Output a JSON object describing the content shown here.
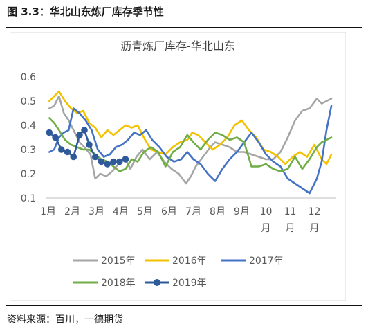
{
  "figure": {
    "title": "图 3.3：华北山东炼厂库存季节性",
    "source": "资料来源：百川，一德期货"
  },
  "chart_data": {
    "type": "line",
    "title": "沥青炼厂库存-华北山东",
    "xlabel": "",
    "ylabel": "",
    "ylim": [
      0.1,
      0.6
    ],
    "yticks": [
      "0.1",
      "0.2",
      "0.3",
      "0.4",
      "0.5",
      "0.6"
    ],
    "x_range": [
      1,
      13
    ],
    "xticks": [
      {
        "x": 1,
        "lines": [
          "1月"
        ]
      },
      {
        "x": 2,
        "lines": [
          "2月"
        ]
      },
      {
        "x": 3,
        "lines": [
          "3月"
        ]
      },
      {
        "x": 4,
        "lines": [
          "4月"
        ]
      },
      {
        "x": 5,
        "lines": [
          "5月"
        ]
      },
      {
        "x": 6,
        "lines": [
          "6月"
        ]
      },
      {
        "x": 7,
        "lines": [
          "7月"
        ]
      },
      {
        "x": 8,
        "lines": [
          "8月"
        ]
      },
      {
        "x": 9,
        "lines": [
          "9月"
        ]
      },
      {
        "x": 10,
        "lines": [
          "10",
          "月"
        ]
      },
      {
        "x": 11,
        "lines": [
          "11",
          "月"
        ]
      },
      {
        "x": 12,
        "lines": [
          "12",
          "月"
        ]
      }
    ],
    "grid": false,
    "legend_position": "bottom",
    "series": [
      {
        "name": "2015年",
        "color": "#a5a5a5",
        "marker": false,
        "x": [
          1.15,
          1.35,
          1.55,
          1.75,
          1.95,
          2.15,
          2.4,
          2.6,
          2.85,
          3.05,
          3.25,
          3.5,
          3.75,
          4.0,
          4.25,
          4.5,
          4.75,
          5.0,
          5.3,
          5.6,
          5.9,
          6.2,
          6.5,
          6.8,
          7.0,
          7.2,
          7.5,
          7.8,
          8.0,
          8.3,
          8.6,
          8.9,
          9.2,
          9.5,
          9.8,
          10.1,
          10.4,
          10.7,
          11.0,
          11.3,
          11.6,
          11.9,
          12.2,
          12.4,
          12.6,
          12.8
        ],
        "y": [
          0.47,
          0.48,
          0.52,
          0.45,
          0.42,
          0.38,
          0.33,
          0.31,
          0.28,
          0.18,
          0.2,
          0.19,
          0.21,
          0.24,
          0.27,
          0.22,
          0.27,
          0.3,
          0.26,
          0.29,
          0.25,
          0.22,
          0.2,
          0.16,
          0.19,
          0.23,
          0.27,
          0.31,
          0.33,
          0.32,
          0.31,
          0.29,
          0.29,
          0.28,
          0.27,
          0.26,
          0.26,
          0.29,
          0.35,
          0.42,
          0.46,
          0.47,
          0.51,
          0.49,
          0.5,
          0.51
        ]
      },
      {
        "name": "2016年",
        "color": "#f2c200",
        "marker": false,
        "x": [
          1.15,
          1.35,
          1.55,
          1.8,
          2.05,
          2.3,
          2.55,
          2.8,
          3.05,
          3.3,
          3.55,
          3.8,
          4.05,
          4.3,
          4.55,
          4.8,
          5.05,
          5.35,
          5.65,
          5.95,
          6.25,
          6.55,
          6.85,
          7.05,
          7.3,
          7.6,
          7.9,
          8.2,
          8.5,
          8.8,
          9.1,
          9.4,
          9.7,
          10.0,
          10.3,
          10.6,
          10.9,
          11.2,
          11.5,
          11.8,
          12.1,
          12.4,
          12.6,
          12.8
        ],
        "y": [
          0.5,
          0.52,
          0.54,
          0.5,
          0.47,
          0.45,
          0.46,
          0.41,
          0.39,
          0.35,
          0.38,
          0.36,
          0.38,
          0.4,
          0.39,
          0.4,
          0.35,
          0.3,
          0.29,
          0.28,
          0.31,
          0.33,
          0.34,
          0.37,
          0.36,
          0.33,
          0.3,
          0.32,
          0.35,
          0.4,
          0.42,
          0.38,
          0.35,
          0.3,
          0.29,
          0.27,
          0.24,
          0.27,
          0.29,
          0.27,
          0.32,
          0.26,
          0.24,
          0.28
        ]
      },
      {
        "name": "2017年",
        "color": "#4472c4",
        "marker": false,
        "x": [
          1.15,
          1.35,
          1.55,
          1.75,
          1.95,
          2.15,
          2.4,
          2.65,
          2.9,
          3.15,
          3.4,
          3.65,
          3.9,
          4.15,
          4.4,
          4.65,
          4.9,
          5.15,
          5.4,
          5.7,
          6.0,
          6.3,
          6.6,
          6.85,
          7.1,
          7.4,
          7.7,
          8.0,
          8.3,
          8.6,
          8.9,
          9.2,
          9.5,
          9.8,
          10.1,
          10.4,
          10.7,
          11.0,
          11.3,
          11.6,
          11.9,
          12.2,
          12.4,
          12.6,
          12.8
        ],
        "y": [
          0.29,
          0.3,
          0.35,
          0.37,
          0.38,
          0.47,
          0.45,
          0.42,
          0.38,
          0.3,
          0.27,
          0.28,
          0.31,
          0.32,
          0.34,
          0.37,
          0.36,
          0.38,
          0.34,
          0.31,
          0.27,
          0.25,
          0.26,
          0.29,
          0.26,
          0.24,
          0.2,
          0.17,
          0.22,
          0.26,
          0.29,
          0.33,
          0.37,
          0.33,
          0.28,
          0.25,
          0.23,
          0.18,
          0.16,
          0.14,
          0.12,
          0.18,
          0.25,
          0.38,
          0.48
        ]
      },
      {
        "name": "2018年",
        "color": "#70ad47",
        "marker": false,
        "x": [
          1.15,
          1.35,
          1.55,
          1.8,
          2.05,
          2.3,
          2.55,
          2.8,
          3.05,
          3.3,
          3.55,
          3.8,
          4.05,
          4.3,
          4.55,
          4.8,
          5.05,
          5.35,
          5.65,
          5.95,
          6.25,
          6.55,
          6.85,
          7.1,
          7.4,
          7.7,
          8.0,
          8.3,
          8.6,
          8.9,
          9.2,
          9.5,
          9.8,
          10.1,
          10.4,
          10.7,
          11.0,
          11.3,
          11.6,
          11.9,
          12.2,
          12.4,
          12.6,
          12.8
        ],
        "y": [
          0.43,
          0.41,
          0.38,
          0.34,
          0.32,
          0.31,
          0.3,
          0.3,
          0.28,
          0.26,
          0.25,
          0.23,
          0.21,
          0.22,
          0.26,
          0.25,
          0.29,
          0.31,
          0.29,
          0.23,
          0.29,
          0.31,
          0.36,
          0.33,
          0.3,
          0.34,
          0.37,
          0.36,
          0.34,
          0.35,
          0.33,
          0.23,
          0.23,
          0.24,
          0.22,
          0.21,
          0.22,
          0.27,
          0.22,
          0.26,
          0.31,
          0.33,
          0.34,
          0.35
        ]
      },
      {
        "name": "2019年",
        "color": "#2e5a9a",
        "marker": true,
        "x": [
          1.15,
          1.4,
          1.65,
          1.9,
          2.15,
          2.4,
          2.6,
          2.8,
          3.05,
          3.3,
          3.55,
          3.8,
          4.05,
          4.3
        ],
        "y": [
          0.37,
          0.35,
          0.3,
          0.29,
          0.27,
          0.36,
          0.38,
          0.32,
          0.27,
          0.25,
          0.24,
          0.25,
          0.25,
          0.26
        ]
      }
    ]
  }
}
